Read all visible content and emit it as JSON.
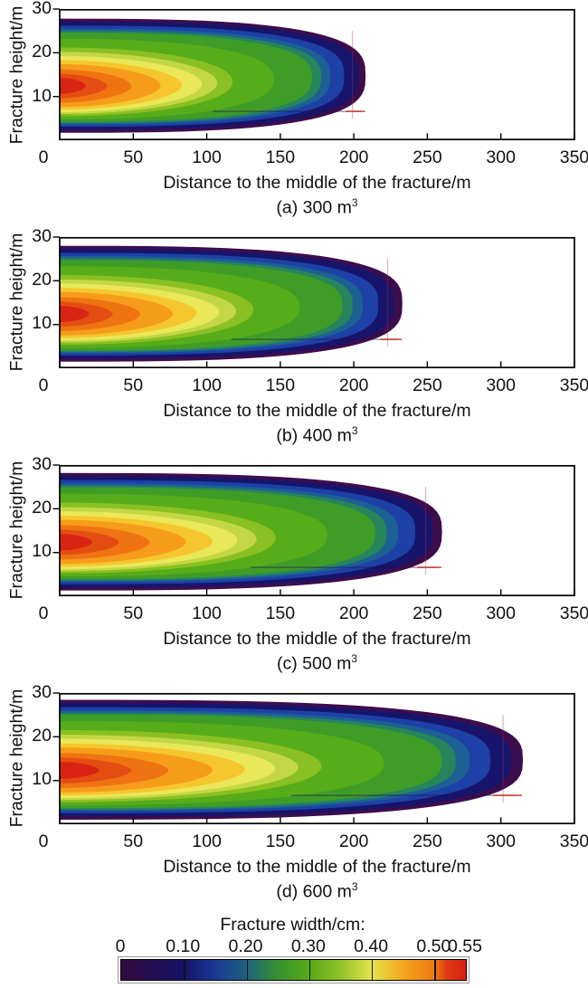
{
  "chart_data": {
    "type": "heatmap",
    "description": "Four filled-contour maps of hydraulic fracture width at increasing injected volumes, sharing axes and one color scale",
    "common": {
      "xlabel": "Distance to the middle of the fracture/m",
      "ylabel": "Fracture height/m",
      "xlim": [
        0,
        350
      ],
      "ylim": [
        0,
        30
      ],
      "x_ticks": [
        0,
        50,
        100,
        150,
        200,
        250,
        300,
        350
      ],
      "y_ticks": [
        10,
        20,
        30
      ],
      "grid": false,
      "frame": true
    },
    "plots": [
      {
        "id": "a",
        "caption": "(a) 300 m",
        "caption_sup": "3",
        "injected_volume_m3": 300,
        "fracture_half_length_m": 208,
        "fracture_top_m": 27.8,
        "fracture_bottom_m": 1.7,
        "max_width_cm": 0.55,
        "y_scale": 1.0
      },
      {
        "id": "b",
        "caption": "(b) 400 m",
        "caption_sup": "3",
        "injected_volume_m3": 400,
        "fracture_half_length_m": 233,
        "fracture_top_m": 27.9,
        "fracture_bottom_m": 1.7,
        "max_width_cm": 0.55,
        "y_scale": 1.015
      },
      {
        "id": "c",
        "caption": "(c) 500 m",
        "caption_sup": "3",
        "injected_volume_m3": 500,
        "fracture_half_length_m": 260,
        "fracture_top_m": 28.1,
        "fracture_bottom_m": 1.6,
        "max_width_cm": 0.55,
        "y_scale": 1.03
      },
      {
        "id": "d",
        "caption": "(d) 600 m",
        "caption_sup": "3",
        "injected_volume_m3": 600,
        "fracture_half_length_m": 315,
        "fracture_top_m": 28.4,
        "fracture_bottom_m": 1.5,
        "max_width_cm": 0.55,
        "y_scale": 1.05
      }
    ],
    "contour_bands": [
      {
        "width_cm": 0.03,
        "color": "#3c0d4d",
        "tip_fraction": 1.0,
        "y_top": 27.8,
        "y_bottom": 1.7,
        "shape_n": 3.0
      },
      {
        "width_cm": 0.08,
        "color": "#16156b",
        "tip_fraction": 0.975,
        "y_top": 27.1,
        "y_bottom": 2.4,
        "shape_n": 3.0
      },
      {
        "width_cm": 0.14,
        "color": "#1d41a6",
        "tip_fraction": 0.93,
        "y_top": 26.2,
        "y_bottom": 3.1,
        "shape_n": 2.9
      },
      {
        "width_cm": 0.18,
        "color": "#1d6093",
        "tip_fraction": 0.885,
        "y_top": 25.5,
        "y_bottom": 3.6,
        "shape_n": 2.85
      },
      {
        "width_cm": 0.21,
        "color": "#27855c",
        "tip_fraction": 0.855,
        "y_top": 25.0,
        "y_bottom": 3.9,
        "shape_n": 2.8
      },
      {
        "width_cm": 0.25,
        "color": "#3f9d27",
        "tip_fraction": 0.825,
        "y_top": 24.6,
        "y_bottom": 4.2,
        "shape_n": 2.7
      },
      {
        "width_cm": 0.3,
        "color": "#57ac1a",
        "tip_fraction": 0.7,
        "y_top": 23.2,
        "y_bottom": 4.8,
        "shape_n": 2.4
      },
      {
        "width_cm": 0.34,
        "color": "#8ac022",
        "tip_fraction": 0.565,
        "y_top": 21.2,
        "y_bottom": 5.5,
        "shape_n": 2.1
      },
      {
        "width_cm": 0.37,
        "color": "#c3d744",
        "tip_fraction": 0.515,
        "y_top": 20.2,
        "y_bottom": 6.0,
        "shape_n": 2.0
      },
      {
        "width_cm": 0.4,
        "color": "#e9e858",
        "tip_fraction": 0.465,
        "y_top": 19.3,
        "y_bottom": 6.4,
        "shape_n": 1.95
      },
      {
        "width_cm": 0.43,
        "color": "#f6c62f",
        "tip_fraction": 0.4,
        "y_top": 18.3,
        "y_bottom": 7.0,
        "shape_n": 1.9
      },
      {
        "width_cm": 0.45,
        "color": "#f69c1b",
        "tip_fraction": 0.33,
        "y_top": 17.4,
        "y_bottom": 7.6,
        "shape_n": 1.9
      },
      {
        "width_cm": 0.48,
        "color": "#f07312",
        "tip_fraction": 0.235,
        "y_top": 16.2,
        "y_bottom": 8.6,
        "shape_n": 1.85
      },
      {
        "width_cm": 0.51,
        "color": "#e44d11",
        "tip_fraction": 0.155,
        "y_top": 15.2,
        "y_bottom": 9.6,
        "shape_n": 1.8
      },
      {
        "width_cm": 0.54,
        "color": "#da2413",
        "tip_fraction": 0.085,
        "y_top": 14.3,
        "y_bottom": 10.6,
        "shape_n": 1.8
      }
    ],
    "colorbar": {
      "title": "Fracture width/cm:",
      "tick_labels": [
        "0",
        "0.10",
        "0.20",
        "0.30",
        "0.40",
        "0.50",
        "0.55"
      ],
      "tick_values": [
        0,
        0.1,
        0.2,
        0.3,
        0.4,
        0.5,
        0.55
      ],
      "range": [
        0,
        0.55
      ],
      "divider_values": [
        0.1,
        0.2,
        0.3,
        0.4,
        0.5
      ],
      "gradient": [
        {
          "at": 0.0,
          "color": "#33093f"
        },
        {
          "at": 0.1,
          "color": "#141468"
        },
        {
          "at": 0.15,
          "color": "#1b3894"
        },
        {
          "at": 0.2,
          "color": "#1e6180"
        },
        {
          "at": 0.25,
          "color": "#35922f"
        },
        {
          "at": 0.3,
          "color": "#58aa17"
        },
        {
          "at": 0.35,
          "color": "#8fc229"
        },
        {
          "at": 0.4,
          "color": "#e3e24b"
        },
        {
          "at": 0.45,
          "color": "#f4a61e"
        },
        {
          "at": 0.5,
          "color": "#ee7a10"
        },
        {
          "at": 0.52,
          "color": "#dc3b12"
        },
        {
          "at": 0.55,
          "color": "#d81f12"
        }
      ]
    }
  }
}
